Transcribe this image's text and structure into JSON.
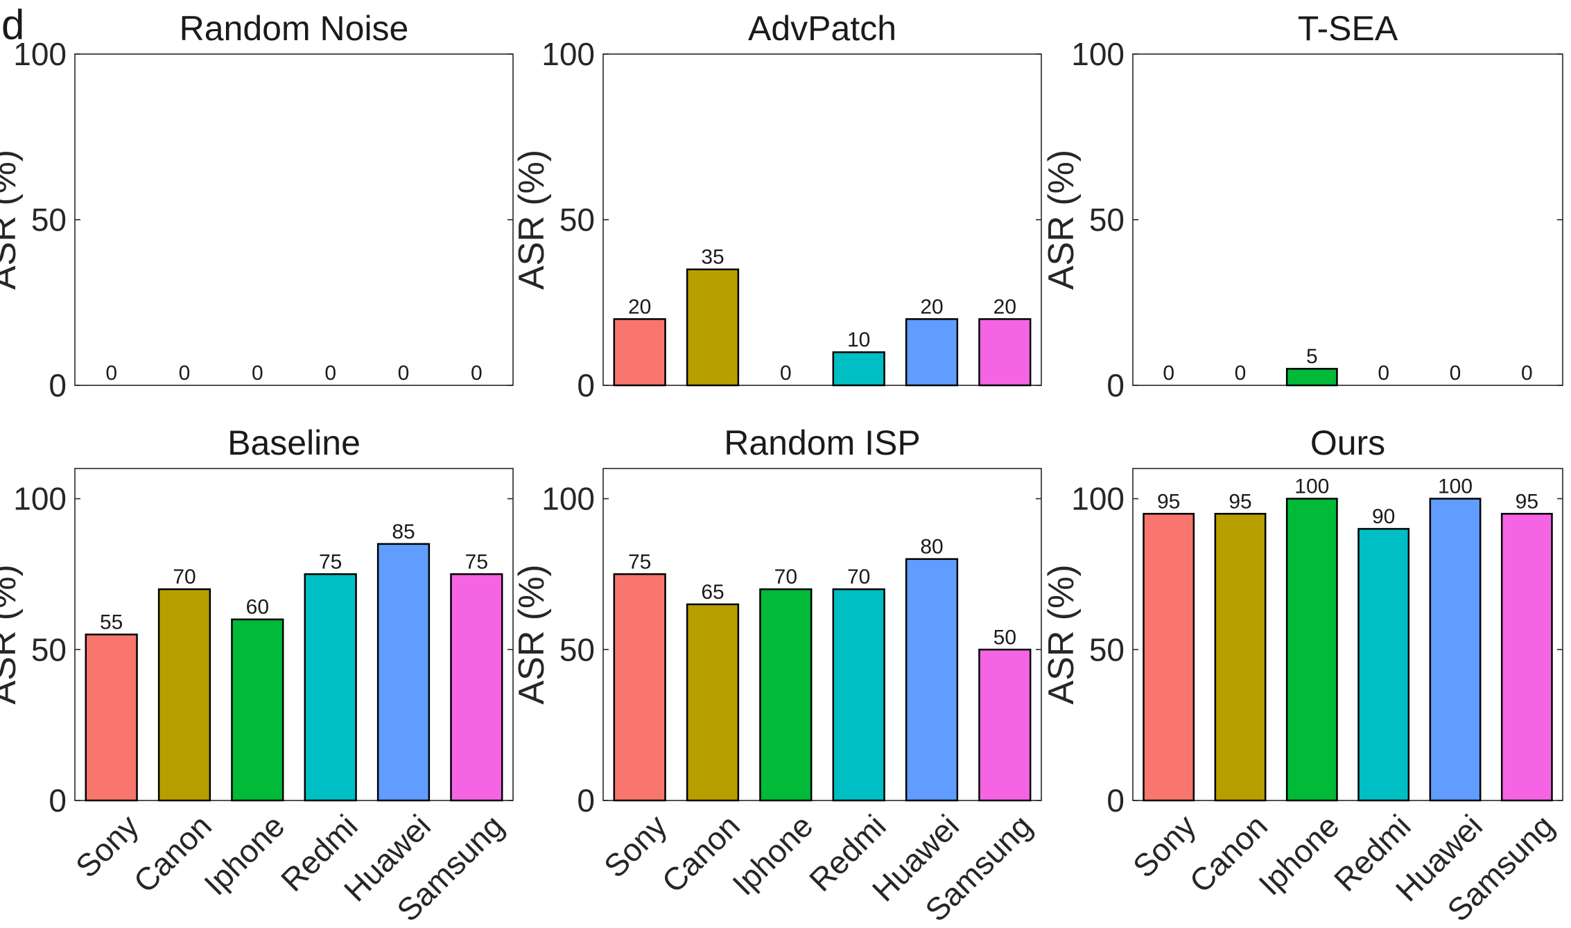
{
  "figure": {
    "panel_letter": "d",
    "bar_colors": [
      "#F8766D",
      "#B79F00",
      "#00BA38",
      "#00BFC4",
      "#619CFF",
      "#F564E3"
    ]
  },
  "chart_data": [
    {
      "type": "bar",
      "title": "Random Noise",
      "categories": [
        "Sony",
        "Canon",
        "Iphone",
        "Redmi",
        "Huawei",
        "Samsung"
      ],
      "values": [
        0,
        0,
        0,
        0,
        0,
        0
      ],
      "data_labels": [
        "0",
        "0",
        "0",
        "0",
        "0",
        "0"
      ],
      "ylabel": "ASR (%)",
      "yticks": [
        "0",
        "50",
        "100"
      ],
      "ylim": [
        0,
        100
      ],
      "show_xticklabels": false
    },
    {
      "type": "bar",
      "title": "AdvPatch",
      "categories": [
        "Sony",
        "Canon",
        "Iphone",
        "Redmi",
        "Huawei",
        "Samsung"
      ],
      "values": [
        20,
        35,
        0,
        10,
        20,
        20
      ],
      "data_labels": [
        "20",
        "35",
        "0",
        "10",
        "20",
        "20"
      ],
      "ylabel": "ASR (%)",
      "yticks": [
        "0",
        "50",
        "100"
      ],
      "ylim": [
        0,
        100
      ],
      "show_xticklabels": false
    },
    {
      "type": "bar",
      "title": "T-SEA",
      "categories": [
        "Sony",
        "Canon",
        "Iphone",
        "Redmi",
        "Huawei",
        "Samsung"
      ],
      "values": [
        0,
        0,
        5,
        0,
        0,
        0
      ],
      "data_labels": [
        "0",
        "0",
        "5",
        "0",
        "0",
        "0"
      ],
      "ylabel": "ASR (%)",
      "yticks": [
        "0",
        "50",
        "100"
      ],
      "ylim": [
        0,
        100
      ],
      "show_xticklabels": false
    },
    {
      "type": "bar",
      "title": "Baseline",
      "categories": [
        "Sony",
        "Canon",
        "Iphone",
        "Redmi",
        "Huawei",
        "Samsung"
      ],
      "values": [
        55,
        70,
        60,
        75,
        85,
        75
      ],
      "data_labels": [
        "55",
        "70",
        "60",
        "75",
        "85",
        "75"
      ],
      "ylabel": "ASR (%)",
      "yticks": [
        "0",
        "50",
        "100"
      ],
      "ylim": [
        0,
        110
      ],
      "show_xticklabels": true
    },
    {
      "type": "bar",
      "title": "Random ISP",
      "categories": [
        "Sony",
        "Canon",
        "Iphone",
        "Redmi",
        "Huawei",
        "Samsung"
      ],
      "values": [
        75,
        65,
        70,
        70,
        80,
        50
      ],
      "data_labels": [
        "75",
        "65",
        "70",
        "70",
        "80",
        "50"
      ],
      "ylabel": "ASR (%)",
      "yticks": [
        "0",
        "50",
        "100"
      ],
      "ylim": [
        0,
        110
      ],
      "show_xticklabels": true
    },
    {
      "type": "bar",
      "title": "Ours",
      "categories": [
        "Sony",
        "Canon",
        "Iphone",
        "Redmi",
        "Huawei",
        "Samsung"
      ],
      "values": [
        95,
        95,
        100,
        90,
        100,
        95
      ],
      "data_labels": [
        "95",
        "95",
        "100",
        "90",
        "100",
        "95"
      ],
      "ylabel": "ASR (%)",
      "yticks": [
        "0",
        "50",
        "100"
      ],
      "ylim": [
        0,
        110
      ],
      "show_xticklabels": true
    }
  ]
}
